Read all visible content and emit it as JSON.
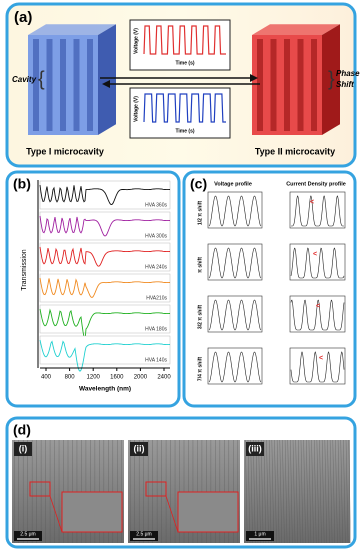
{
  "panel_a": {
    "label": "(a)",
    "left_note": "Cavity",
    "right_note": [
      "Phase",
      "Shift"
    ],
    "graphs": [
      {
        "y_label": "Voltage (V)",
        "x_label": "Time (s)",
        "color": "#e03030"
      },
      {
        "y_label": "Voltage (V)",
        "x_label": "Time (s)",
        "color": "#2040c0"
      }
    ],
    "left_caption": "Type I microcavity",
    "right_caption": "Type II microcavity"
  },
  "panel_b": {
    "label": "(b)",
    "y_label": "Transmission",
    "x_label": "Wavelength (nm)",
    "xticks": [
      400,
      800,
      1200,
      1600,
      2000,
      2400
    ],
    "traces": [
      {
        "name": "HVA 360s",
        "color": "#111111"
      },
      {
        "name": "HVA 300s",
        "color": "#a020a0"
      },
      {
        "name": "HVA 240s",
        "color": "#e02020"
      },
      {
        "name": "HVA210s",
        "color": "#f08a20"
      },
      {
        "name": "HVA 180s",
        "color": "#20b020"
      },
      {
        "name": "HVA 140s",
        "color": "#20d0d0"
      }
    ]
  },
  "panel_c": {
    "label": "(c)",
    "col_titles": [
      "Voltage profile",
      "Current Density profile"
    ],
    "rows": [
      "1/2 π shift",
      "π shift",
      "3/2 π shift",
      "7/4 π shift"
    ]
  },
  "panel_d": {
    "label": "(d)",
    "images": [
      {
        "label": "(i)",
        "scale": "2.5 μm"
      },
      {
        "label": "(ii)",
        "scale": "2.5 μm"
      },
      {
        "label": "(iii)",
        "scale": "1 μm"
      }
    ]
  }
}
